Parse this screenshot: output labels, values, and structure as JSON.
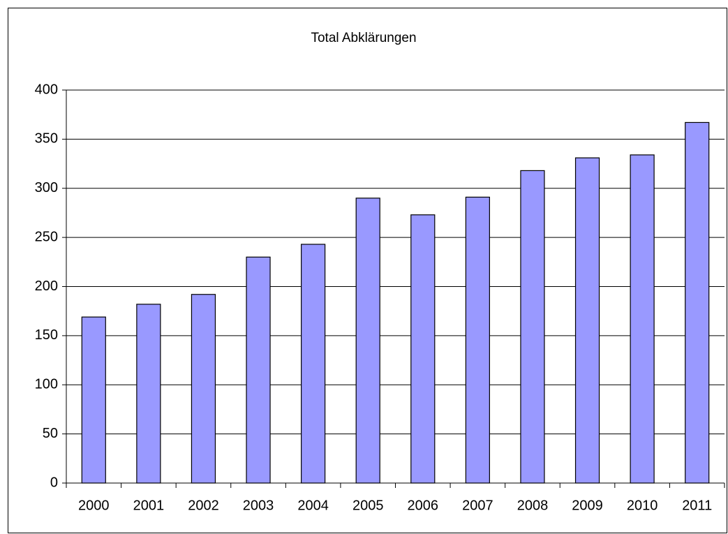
{
  "chart_data": {
    "type": "bar",
    "title": "Total Abklärungen",
    "categories": [
      "2000",
      "2001",
      "2002",
      "2003",
      "2004",
      "2005",
      "2006",
      "2007",
      "2008",
      "2009",
      "2010",
      "2011"
    ],
    "values": [
      169,
      182,
      192,
      230,
      243,
      290,
      273,
      291,
      318,
      331,
      334,
      367
    ],
    "color": "#9999ff",
    "ylim": [
      0,
      400
    ],
    "yticks": [
      0,
      50,
      100,
      150,
      200,
      250,
      300,
      350,
      400
    ],
    "grid": true
  }
}
